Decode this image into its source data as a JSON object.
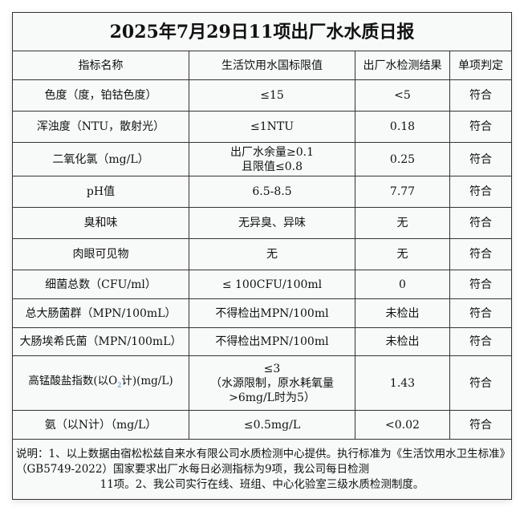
{
  "title": "2025年7月29日11项出厂水水质日报",
  "headers": [
    "指标名称",
    "生活饮用水国标限值",
    "出厂水检测结果",
    "单项判定"
  ],
  "rows": [
    {
      "name": "色度（度，铂钴色度）",
      "limit": "≤15",
      "result": "<5",
      "verdict": "符合"
    },
    {
      "name": "浑浊度（NTU，散射光）",
      "limit": "≤1NTU",
      "result": "0.18",
      "verdict": "符合"
    },
    {
      "name": "二氧化氯（mg/L）",
      "limit": "出厂水余量≥0.1",
      "limit2": "且限值≤0.8",
      "result": "0.25",
      "verdict": "符合"
    },
    {
      "name": "pH值",
      "limit": "6.5-8.5",
      "result": "7.77",
      "verdict": "符合"
    },
    {
      "name": "臭和味",
      "limit": "无异臭、异味",
      "result": "无",
      "verdict": "符合"
    },
    {
      "name": "肉眼可见物",
      "limit": "无",
      "result": "无",
      "verdict": "符合"
    },
    {
      "name": "细菌总数（CFU/ml）",
      "limit": "≤ 100CFU/100ml",
      "result": "0",
      "verdict": "符合"
    },
    {
      "name": "总大肠菌群（MPN/100mL）",
      "limit": "不得检出MPN/100ml",
      "result": "未检出",
      "verdict": "符合"
    },
    {
      "name": "大肠埃希氏菌（MPN/100mL）",
      "limit": "不得检出MPN/100ml",
      "result": "未检出",
      "verdict": "符合"
    },
    {
      "name_a": "高锰酸盐指数(以O",
      "name_sub": "2",
      "name_b": "计)(mg/L)",
      "limit": "≤3",
      "limit2": "（水源限制，原水耗氧量",
      "limit3": ">6mg/L时为5）",
      "result": "1.43",
      "verdict": "符合"
    },
    {
      "name": "氨（以N计）（mg/L）",
      "limit": "≤0.5mg/L",
      "result": "<0.02",
      "verdict": "符合"
    }
  ],
  "note": {
    "line1": "说明：1、以上数据由宿松松兹自来水有限公司水质检测中心提供。执行标准为《生活饮用水卫生标准》（GB5749-2022）国家要求出厂水每日必测指标为9项，我公司每日检测",
    "line2": "11项。2、我公司实行在线、班组、中心化验室三级水质检测制度。"
  }
}
